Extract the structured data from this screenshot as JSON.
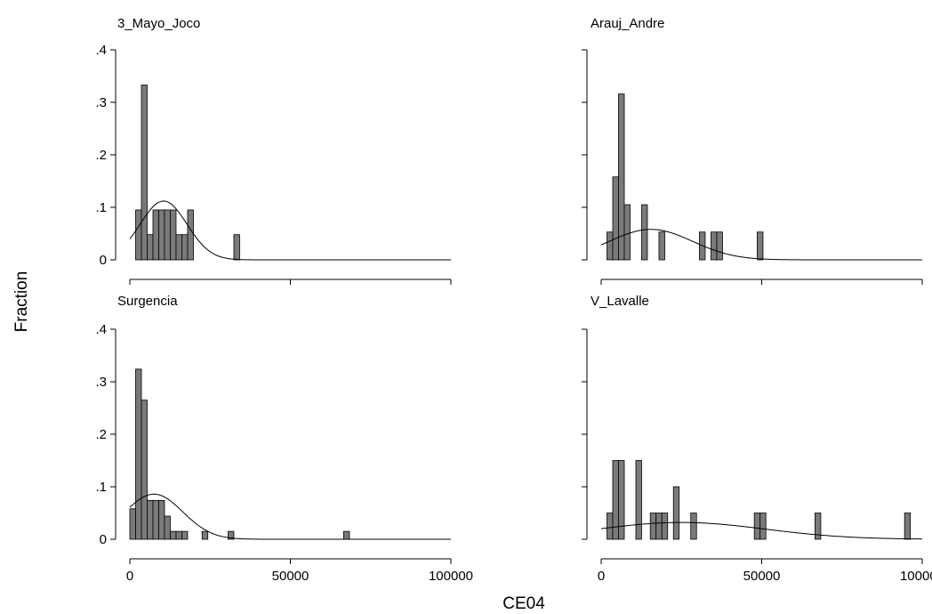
{
  "chart_data": {
    "type": "bar",
    "ylabel": "Fraction",
    "xlabel": "CE04",
    "ylim": [
      0,
      0.4
    ],
    "yticks": [
      0,
      0.1,
      0.2,
      0.3,
      0.4
    ],
    "ytick_labels": [
      "0",
      ".1",
      ".2",
      ".3",
      ".4"
    ],
    "xlim": [
      0,
      100000
    ],
    "xticks": [
      0,
      50000,
      100000
    ],
    "xtick_labels": [
      "0",
      "50000",
      "100000"
    ],
    "bin_width": 1800,
    "overlay": "normal density",
    "grid": false,
    "panels": [
      {
        "title": "3_Mayo_Joco",
        "bins": [
          {
            "x": 2700,
            "value": 0.095
          },
          {
            "x": 4500,
            "value": 0.333
          },
          {
            "x": 6300,
            "value": 0.048
          },
          {
            "x": 8100,
            "value": 0.095
          },
          {
            "x": 9900,
            "value": 0.095
          },
          {
            "x": 11700,
            "value": 0.095
          },
          {
            "x": 13500,
            "value": 0.095
          },
          {
            "x": 15300,
            "value": 0.048
          },
          {
            "x": 17100,
            "value": 0.048
          },
          {
            "x": 18900,
            "value": 0.095
          },
          {
            "x": 33300,
            "value": 0.048
          }
        ],
        "normal": {
          "mean": 10500,
          "sd": 7300,
          "peak": 0.112
        }
      },
      {
        "title": "Arauj_Andre",
        "bins": [
          {
            "x": 2700,
            "value": 0.053
          },
          {
            "x": 4500,
            "value": 0.158
          },
          {
            "x": 6300,
            "value": 0.316
          },
          {
            "x": 8100,
            "value": 0.105
          },
          {
            "x": 13500,
            "value": 0.105
          },
          {
            "x": 18900,
            "value": 0.053
          },
          {
            "x": 31500,
            "value": 0.053
          },
          {
            "x": 35100,
            "value": 0.053
          },
          {
            "x": 36900,
            "value": 0.053
          },
          {
            "x": 49500,
            "value": 0.053
          }
        ],
        "normal": {
          "mean": 15500,
          "sd": 13000,
          "peak": 0.058
        }
      },
      {
        "title": "Surgencia",
        "bins": [
          {
            "x": 900,
            "value": 0.058
          },
          {
            "x": 2700,
            "value": 0.324
          },
          {
            "x": 4500,
            "value": 0.265
          },
          {
            "x": 6300,
            "value": 0.074
          },
          {
            "x": 8100,
            "value": 0.074
          },
          {
            "x": 9900,
            "value": 0.074
          },
          {
            "x": 11700,
            "value": 0.044
          },
          {
            "x": 13500,
            "value": 0.015
          },
          {
            "x": 15300,
            "value": 0.015
          },
          {
            "x": 17100,
            "value": 0.015
          },
          {
            "x": 23400,
            "value": 0.015
          },
          {
            "x": 31500,
            "value": 0.015
          },
          {
            "x": 67500,
            "value": 0.015
          }
        ],
        "normal": {
          "mean": 7500,
          "sd": 9000,
          "peak": 0.086
        }
      },
      {
        "title": "V_Lavalle",
        "bins": [
          {
            "x": 2700,
            "value": 0.05
          },
          {
            "x": 4500,
            "value": 0.15
          },
          {
            "x": 6300,
            "value": 0.15
          },
          {
            "x": 11700,
            "value": 0.15
          },
          {
            "x": 16200,
            "value": 0.05
          },
          {
            "x": 18000,
            "value": 0.05
          },
          {
            "x": 19800,
            "value": 0.05
          },
          {
            "x": 23400,
            "value": 0.1
          },
          {
            "x": 28800,
            "value": 0.05
          },
          {
            "x": 48600,
            "value": 0.05
          },
          {
            "x": 50400,
            "value": 0.05
          },
          {
            "x": 67500,
            "value": 0.05
          },
          {
            "x": 95400,
            "value": 0.05
          }
        ],
        "normal": {
          "mean": 25000,
          "sd": 26000,
          "peak": 0.032
        }
      }
    ]
  }
}
